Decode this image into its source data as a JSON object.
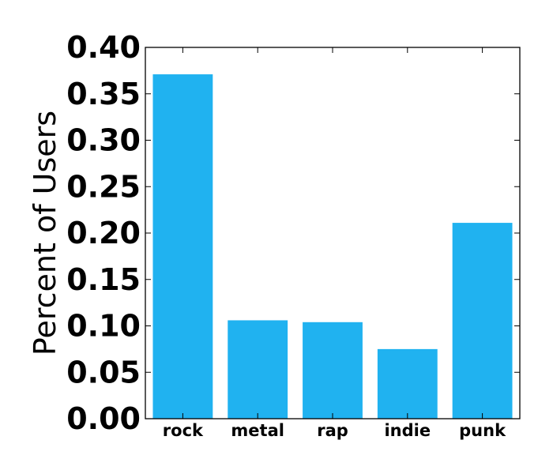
{
  "chart_data": {
    "type": "bar",
    "title": "",
    "xlabel": "",
    "ylabel": "Percent of Users",
    "categories": [
      "rock",
      "metal",
      "rap",
      "indie",
      "punk"
    ],
    "values": [
      0.371,
      0.106,
      0.104,
      0.075,
      0.211
    ],
    "ylim": [
      0,
      0.4
    ],
    "yticks": [
      0.0,
      0.05,
      0.1,
      0.15,
      0.2,
      0.25,
      0.3,
      0.35,
      0.4
    ],
    "ytick_labels": [
      "0.00",
      "0.05",
      "0.10",
      "0.15",
      "0.20",
      "0.25",
      "0.30",
      "0.35",
      "0.40"
    ],
    "bar_color": "#20b2f0",
    "grid": false,
    "legend": "none"
  }
}
